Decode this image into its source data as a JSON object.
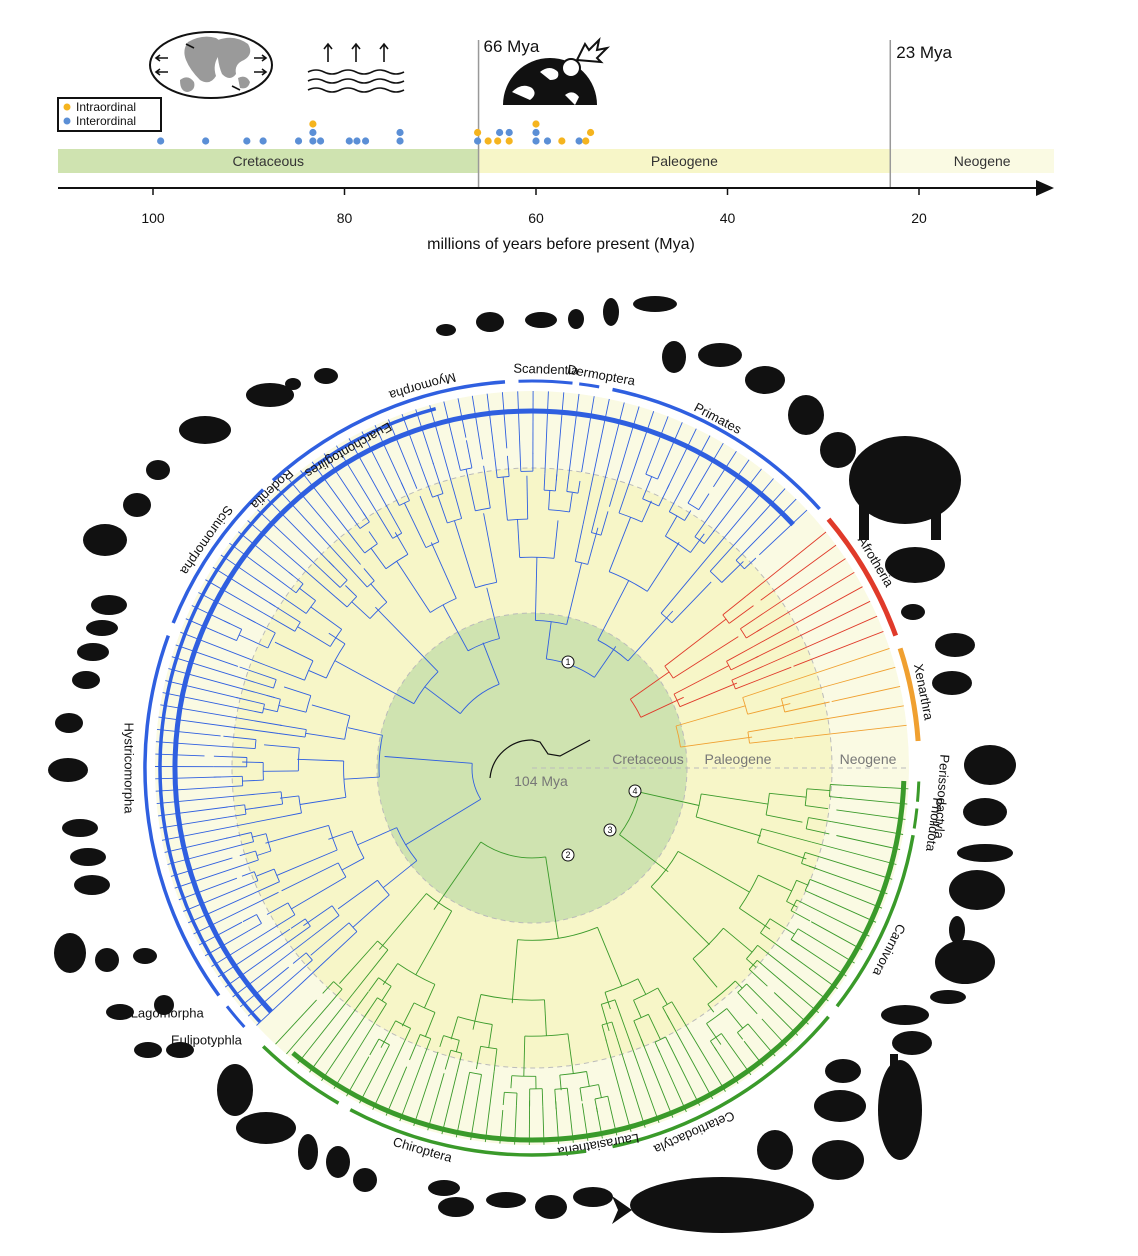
{
  "timeline": {
    "events": {
      "kpg": "66 Mya",
      "oligo_mio": "23 Mya"
    },
    "periods": [
      "Cretaceous",
      "Paleogene",
      "Neogene"
    ],
    "ticks": [
      {
        "value": 100,
        "label": "100"
      },
      {
        "value": 80,
        "label": "80"
      },
      {
        "value": 60,
        "label": "60"
      },
      {
        "value": 40,
        "label": "40"
      },
      {
        "value": 20,
        "label": "20"
      }
    ],
    "axis_label": "millions of years before present (Mya)",
    "legend": {
      "intra": "Intraordinal",
      "inter": "Interordinal"
    },
    "colors": {
      "intra": "#f5b41e",
      "inter": "#5b8fd6",
      "cretaceous": "#cfe3b0",
      "paleogene": "#f7f6c8",
      "neogene": "#fafae3"
    },
    "divergences": [
      {
        "mya": 99.2,
        "type": "inter"
      },
      {
        "mya": 94.5,
        "type": "inter"
      },
      {
        "mya": 90.2,
        "type": "inter"
      },
      {
        "mya": 88.5,
        "type": "inter"
      },
      {
        "mya": 84.8,
        "type": "inter"
      },
      {
        "mya": 83.3,
        "type": "inter"
      },
      {
        "mya": 83.3,
        "type": "inter"
      },
      {
        "mya": 83.3,
        "type": "intra"
      },
      {
        "mya": 82.5,
        "type": "inter"
      },
      {
        "mya": 79.5,
        "type": "inter"
      },
      {
        "mya": 78.7,
        "type": "inter"
      },
      {
        "mya": 77.8,
        "type": "inter"
      },
      {
        "mya": 74.2,
        "type": "inter"
      },
      {
        "mya": 74.2,
        "type": "inter"
      },
      {
        "mya": 66.1,
        "type": "inter"
      },
      {
        "mya": 66.1,
        "type": "intra"
      },
      {
        "mya": 65.0,
        "type": "intra"
      },
      {
        "mya": 64.0,
        "type": "intra"
      },
      {
        "mya": 63.8,
        "type": "inter"
      },
      {
        "mya": 62.8,
        "type": "intra"
      },
      {
        "mya": 62.8,
        "type": "inter"
      },
      {
        "mya": 60.0,
        "type": "inter"
      },
      {
        "mya": 60.0,
        "type": "inter"
      },
      {
        "mya": 60.0,
        "type": "intra"
      },
      {
        "mya": 58.8,
        "type": "inter"
      },
      {
        "mya": 57.3,
        "type": "intra"
      },
      {
        "mya": 55.5,
        "type": "inter"
      },
      {
        "mya": 54.8,
        "type": "intra"
      },
      {
        "mya": 54.3,
        "type": "intra"
      }
    ]
  },
  "tree": {
    "root_label": "104 Mya",
    "rings": [
      "Cretaceous",
      "Paleogene",
      "Neogene"
    ],
    "nodes": [
      "1",
      "2",
      "3",
      "4"
    ],
    "colors": {
      "euarchontoglires": "#2f5fe0",
      "afrotheria": "#e03a2a",
      "xenarthra": "#f0a030",
      "laurasiatheria": "#3a9a2a"
    },
    "clades": [
      {
        "id": "scandentia",
        "label": "Scandentia"
      },
      {
        "id": "dermoptera",
        "label": "Dermoptera"
      },
      {
        "id": "primates",
        "label": "Primates"
      },
      {
        "id": "afrotheria",
        "label": "Afrotheria"
      },
      {
        "id": "xenarthra",
        "label": "Xenarthra"
      },
      {
        "id": "perissodactyla",
        "label": "Perissodactyla"
      },
      {
        "id": "pholidota",
        "label": "Pholidota"
      },
      {
        "id": "carnivora",
        "label": "Carnivora"
      },
      {
        "id": "cetartiodactyla",
        "label": "Cetartiodactyla"
      },
      {
        "id": "laurasiatheria",
        "label": "Laurasiatheria"
      },
      {
        "id": "chiroptera",
        "label": "Chiroptera"
      },
      {
        "id": "eulipotyphla",
        "label": "Eulipotyphla"
      },
      {
        "id": "lagomorpha",
        "label": "Lagomorpha"
      },
      {
        "id": "hystricomorpha",
        "label": "Hystricomorpha"
      },
      {
        "id": "sciuromorpha",
        "label": "Sciuromorpha"
      },
      {
        "id": "rodentia",
        "label": "Rodentia"
      },
      {
        "id": "euarchontoglires",
        "label": "Euarchontoglires"
      },
      {
        "id": "myomorpha",
        "label": "Myomorpha"
      }
    ]
  }
}
